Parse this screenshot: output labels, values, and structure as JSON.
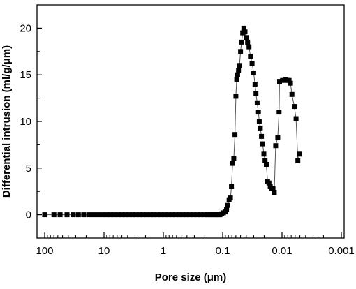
{
  "chart_data": {
    "type": "scatter",
    "title": "",
    "xlabel": "Pore size (μm)",
    "ylabel": "Differential intrusion (ml/g/μm)",
    "x_scale": "log",
    "x_reversed": true,
    "xlim": [
      100,
      0.001
    ],
    "ylim": [
      -2.5,
      22.5
    ],
    "x_ticks": [
      100,
      10,
      1,
      0.1,
      0.01,
      0.001
    ],
    "x_tick_labels": [
      "100",
      "10",
      "1",
      "0.1",
      "0.01",
      "0.001"
    ],
    "y_ticks": [
      0,
      5,
      10,
      15,
      20
    ],
    "y_tick_labels": [
      "0",
      "5",
      "10",
      "15",
      "20"
    ],
    "grid": false,
    "marker": "square",
    "color": "#000000",
    "series": [
      {
        "x": [
          100,
          70,
          55,
          42,
          33,
          27,
          22,
          18,
          15,
          12.5,
          10.5,
          9,
          7.8,
          6.8,
          5.8,
          5,
          4.4,
          3.8,
          3.3,
          2.9,
          2.5,
          2.2,
          1.9,
          1.65,
          1.45,
          1.27,
          1.1,
          0.95,
          0.82,
          0.71,
          0.62,
          0.54,
          0.47,
          0.41,
          0.36,
          0.31,
          0.27,
          0.235,
          0.205,
          0.18,
          0.165,
          0.15,
          0.138,
          0.128,
          0.119,
          0.111,
          0.104,
          0.097,
          0.091,
          0.086,
          0.082,
          0.078,
          0.074,
          0.071,
          0.068,
          0.065,
          0.062,
          0.06,
          0.058,
          0.056,
          0.054,
          0.052,
          0.05,
          0.048,
          0.046,
          0.044,
          0.042,
          0.04,
          0.038,
          0.036,
          0.034,
          0.032,
          0.03,
          0.0285,
          0.0275,
          0.0262,
          0.025,
          0.0242,
          0.0232,
          0.0222,
          0.0212,
          0.0202,
          0.0193,
          0.0184,
          0.0175,
          0.0166,
          0.0158,
          0.015,
          0.0142,
          0.0135,
          0.0128,
          0.0118,
          0.0112,
          0.011,
          0.0098,
          0.0086,
          0.0081,
          0.0076,
          0.0072,
          0.0068,
          0.0062,
          0.0058,
          0.0054,
          0.0051
        ],
        "y": [
          0,
          0,
          0,
          0,
          0,
          0,
          0,
          0,
          0,
          0,
          0,
          0,
          0,
          0,
          0,
          0,
          0,
          0,
          0,
          0,
          0,
          0,
          0,
          0,
          0,
          0,
          0,
          0,
          0,
          0,
          0,
          0,
          0,
          0,
          0,
          0,
          0,
          0,
          0,
          0,
          0,
          0,
          0,
          0,
          0,
          0,
          0.1,
          0.2,
          0.3,
          0.6,
          1,
          1.6,
          1.8,
          3,
          5.5,
          6,
          8.6,
          12.7,
          14.5,
          15,
          15.5,
          16,
          17.5,
          18.5,
          19.5,
          20,
          19.6,
          19,
          18.5,
          18,
          17,
          16.2,
          15.2,
          14,
          13,
          12,
          11,
          10,
          9.3,
          8.4,
          7.6,
          6.5,
          5.8,
          5.4,
          3.6,
          3.4,
          3,
          2.8,
          2.8,
          2.4,
          7.4,
          8.3,
          11,
          14.3,
          14.4,
          14.5,
          14.4,
          14.4,
          14.1,
          12.9,
          11.6,
          10.3,
          5.8,
          6.5
        ]
      }
    ]
  }
}
